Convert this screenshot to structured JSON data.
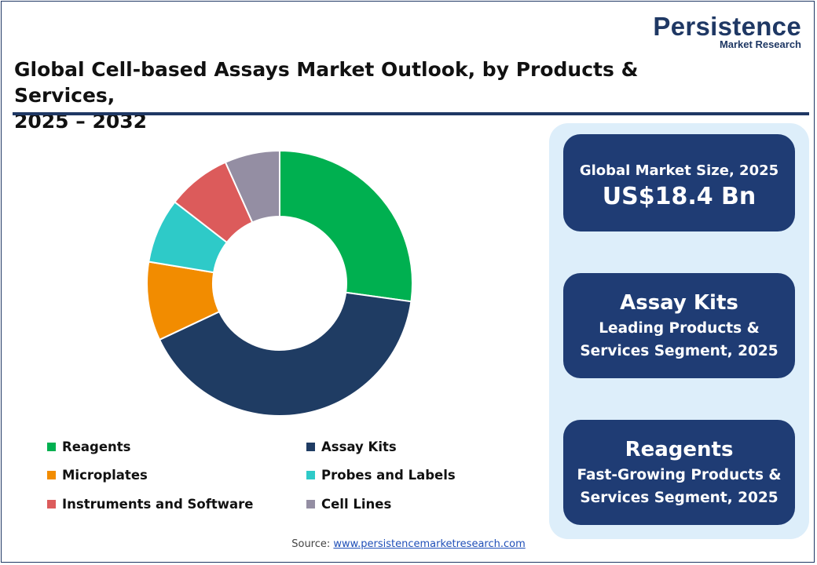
{
  "brand": {
    "name": "Persistence",
    "subtitle": "Market Research"
  },
  "title_line1": "Global Cell-based Assays Market Outlook, by Products & Services,",
  "title_line2": "2025 – 2032",
  "chart_data": {
    "type": "pie",
    "donut": true,
    "categories": [
      "Reagents",
      "Assay Kits",
      "Microplates",
      "Probes and Labels",
      "Instruments and Software",
      "Cell Lines"
    ],
    "values": [
      27.2,
      40.8,
      9.6,
      7.9,
      7.8,
      6.7
    ],
    "colors": [
      "#00b050",
      "#1f3c63",
      "#f28c00",
      "#2ecac8",
      "#dc5b5b",
      "#948ea3"
    ],
    "legend_position": "bottom"
  },
  "kpis": {
    "market_size_label": "Global Market Size, 2025",
    "market_size_value": "US$18.4 Bn",
    "leading_segment": "Assay Kits",
    "leading_line1": "Leading Products &",
    "leading_line2": "Services Segment, 2025",
    "fastest_segment": "Reagents",
    "fastest_line1": "Fast-Growing Products &",
    "fastest_line2": "Services Segment, 2025"
  },
  "source": {
    "label": "Source:",
    "link_text": "www.persistencemarketresearch.com"
  }
}
